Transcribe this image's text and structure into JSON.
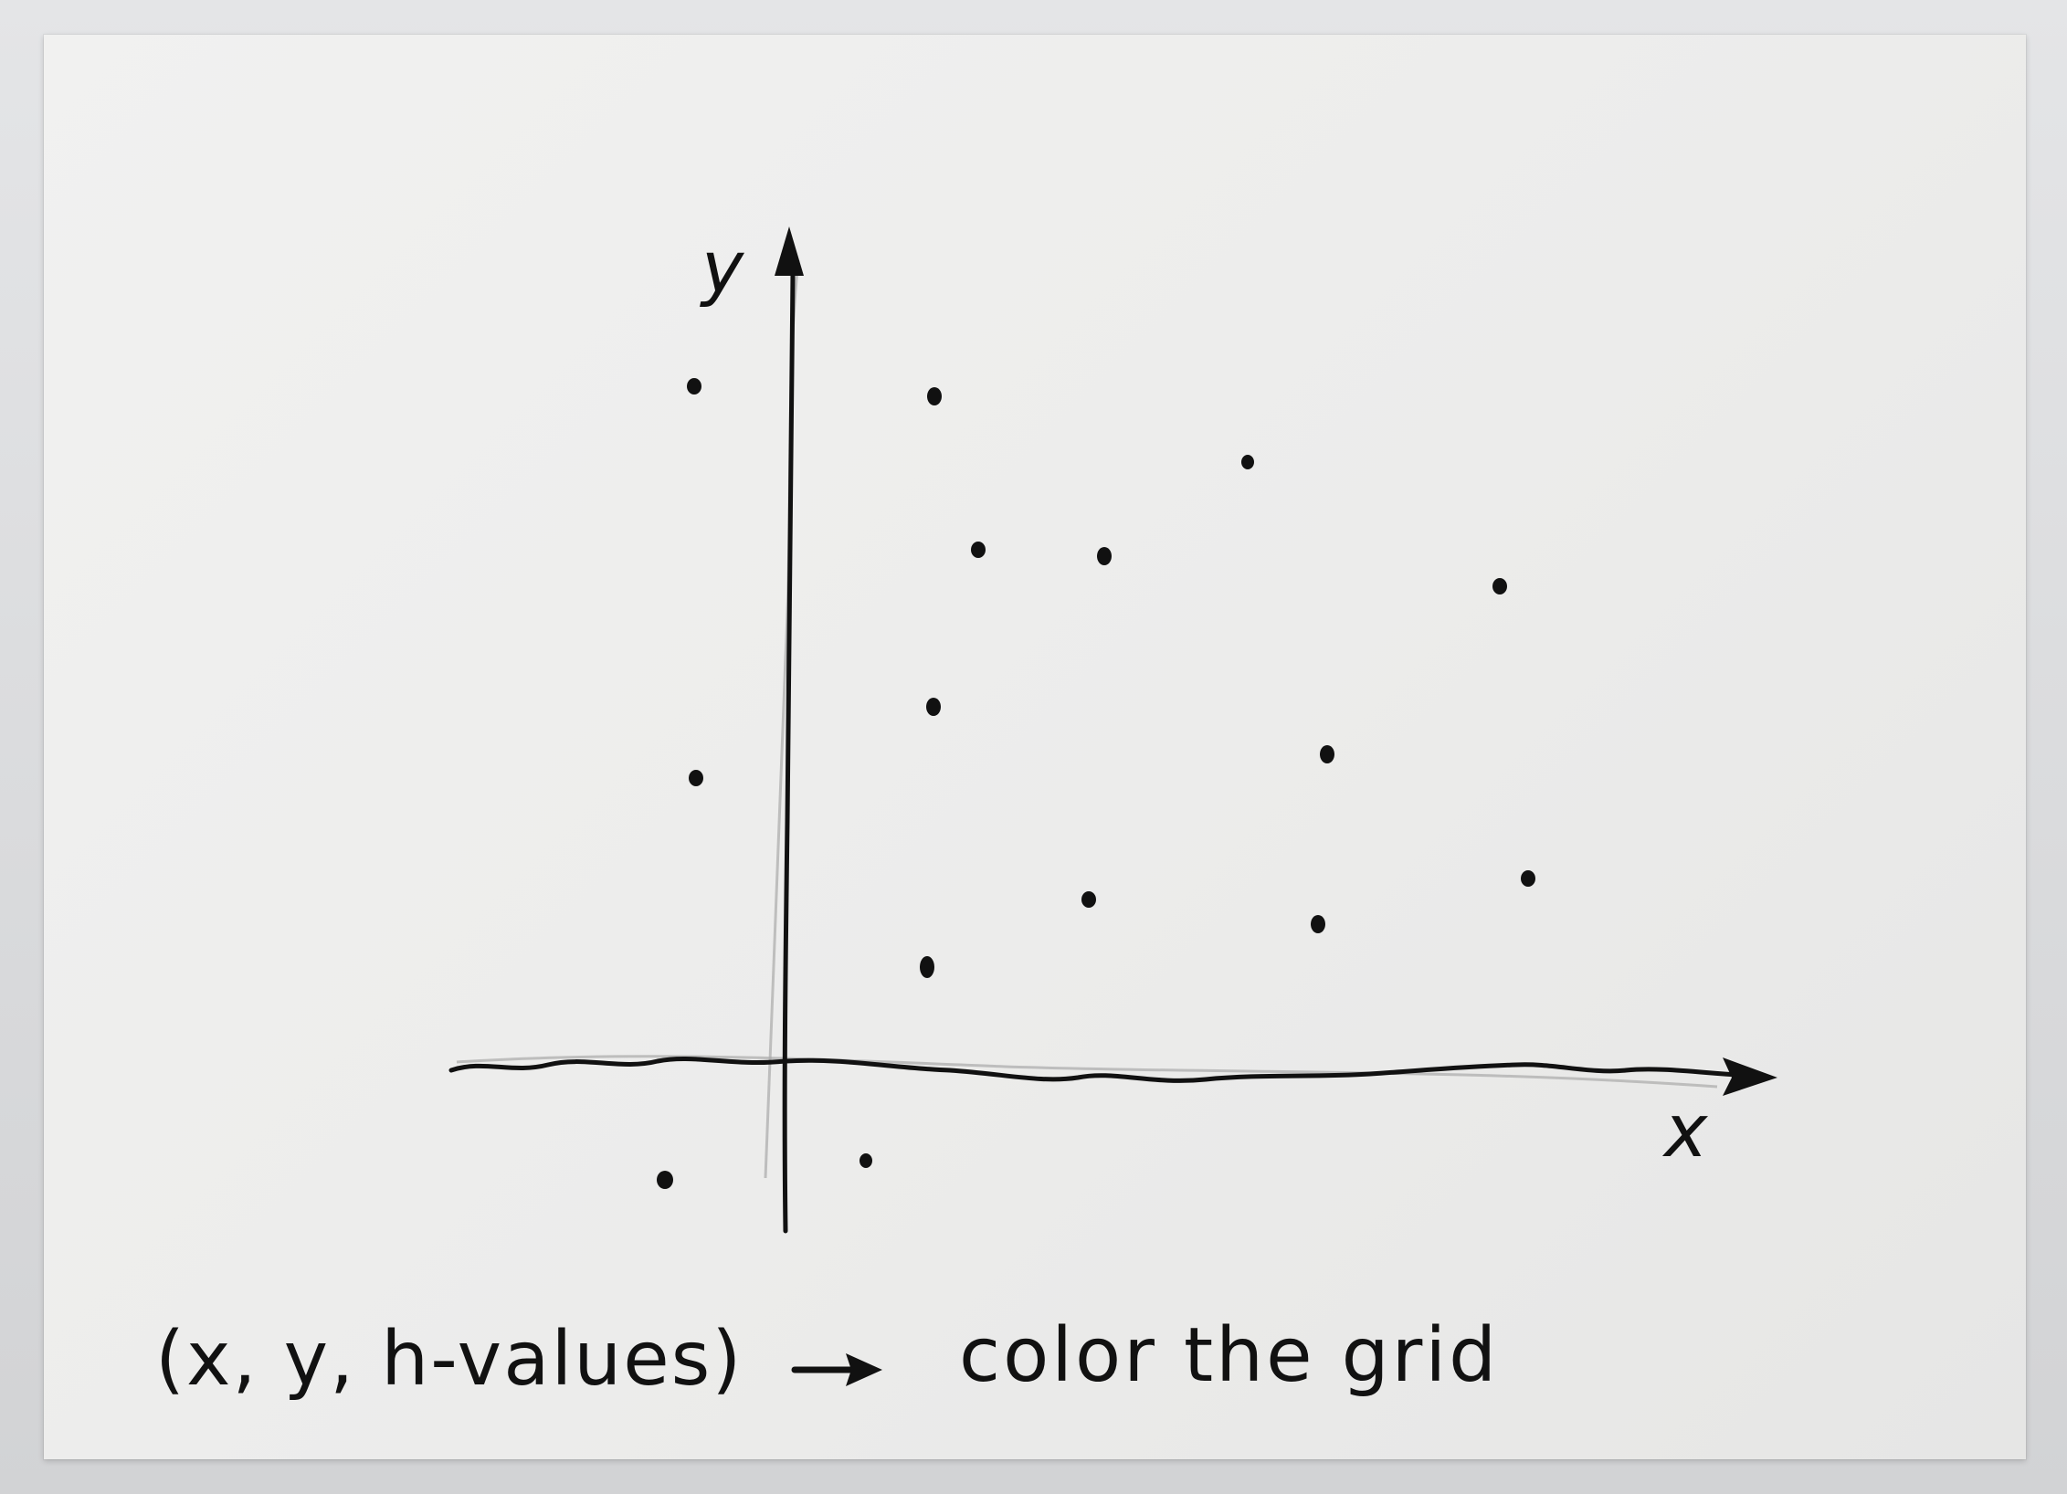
{
  "diagram": {
    "axes": {
      "x_label": "x",
      "y_label": "y"
    },
    "caption": {
      "left": "(x, y, h-values)",
      "arrow_icon": "right-arrow-icon",
      "right": "color the grid"
    },
    "points_description": "scattered data points sketched in pen"
  },
  "colors": {
    "ink": "#111111",
    "pencil": "#a9a9a9",
    "paper": "#eeeeed"
  }
}
